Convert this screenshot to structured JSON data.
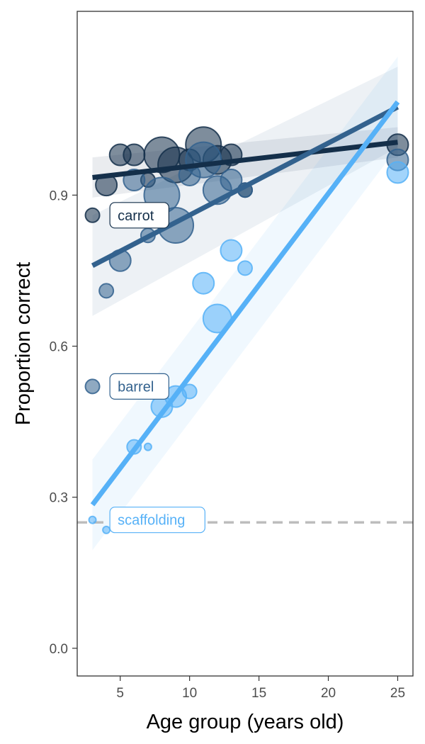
{
  "chart_data": {
    "type": "scatter",
    "title": "",
    "xlabel": "Age group (years old)",
    "ylabel": "Proportion correct",
    "xlim": [
      1.9,
      26.1
    ],
    "ylim": [
      -0.055,
      1.265
    ],
    "x_ticks": [
      5,
      10,
      15,
      20,
      25
    ],
    "y_ticks": [
      0.0,
      0.3,
      0.6,
      0.9
    ],
    "x_tick_labels": [
      "5",
      "10",
      "15",
      "20",
      "25"
    ],
    "y_tick_labels": [
      "0.0",
      "0.3",
      "0.6",
      "0.9"
    ],
    "grid": false,
    "legend": "none",
    "chance_line": {
      "y": 0.25,
      "color": "#bdbdbd",
      "style": "dashed"
    },
    "series": [
      {
        "name": "carrot",
        "color": "#142f4a",
        "points": [
          {
            "x": 3,
            "y": 0.86,
            "size": 2
          },
          {
            "x": 4,
            "y": 0.92,
            "size": 3
          },
          {
            "x": 5,
            "y": 0.98,
            "size": 3
          },
          {
            "x": 6,
            "y": 0.98,
            "size": 3
          },
          {
            "x": 7,
            "y": 0.93,
            "size": 2
          },
          {
            "x": 8,
            "y": 0.98,
            "size": 5
          },
          {
            "x": 9,
            "y": 0.96,
            "size": 5
          },
          {
            "x": 10,
            "y": 0.97,
            "size": 3
          },
          {
            "x": 11,
            "y": 1.0,
            "size": 5
          },
          {
            "x": 12,
            "y": 0.97,
            "size": 4
          },
          {
            "x": 13,
            "y": 0.98,
            "size": 3
          },
          {
            "x": 14,
            "y": 0.91,
            "size": 2
          },
          {
            "x": 25,
            "y": 1.0,
            "size": 3
          }
        ],
        "fit": {
          "x": [
            3,
            25
          ],
          "y": [
            0.935,
            1.005
          ],
          "band_lower": [
            0.895,
            0.975
          ],
          "band_upper": [
            0.975,
            1.035
          ]
        }
      },
      {
        "name": "barrel",
        "color": "#33628e",
        "points": [
          {
            "x": 3,
            "y": 0.52,
            "size": 2
          },
          {
            "x": 4,
            "y": 0.71,
            "size": 2
          },
          {
            "x": 5,
            "y": 0.77,
            "size": 3
          },
          {
            "x": 6,
            "y": 0.93,
            "size": 3
          },
          {
            "x": 7,
            "y": 0.82,
            "size": 2
          },
          {
            "x": 8,
            "y": 0.9,
            "size": 5
          },
          {
            "x": 9,
            "y": 0.84,
            "size": 5
          },
          {
            "x": 10,
            "y": 0.94,
            "size": 3
          },
          {
            "x": 11,
            "y": 0.97,
            "size": 5
          },
          {
            "x": 12,
            "y": 0.91,
            "size": 4
          },
          {
            "x": 13,
            "y": 0.93,
            "size": 3
          },
          {
            "x": 14,
            "y": 0.91,
            "size": 2
          },
          {
            "x": 25,
            "y": 0.97,
            "size": 3
          }
        ],
        "fit": {
          "x": [
            3,
            25
          ],
          "y": [
            0.76,
            1.075
          ],
          "band_lower": [
            0.66,
            0.995
          ],
          "band_upper": [
            0.86,
            1.155
          ]
        }
      },
      {
        "name": "scaffolding",
        "color": "#56b1f7",
        "points": [
          {
            "x": 3,
            "y": 0.255,
            "size": 1
          },
          {
            "x": 4,
            "y": 0.235,
            "size": 1
          },
          {
            "x": 6,
            "y": 0.4,
            "size": 2
          },
          {
            "x": 7,
            "y": 0.4,
            "size": 1
          },
          {
            "x": 8,
            "y": 0.48,
            "size": 3
          },
          {
            "x": 9,
            "y": 0.5,
            "size": 3
          },
          {
            "x": 10,
            "y": 0.51,
            "size": 2
          },
          {
            "x": 11,
            "y": 0.725,
            "size": 3
          },
          {
            "x": 12,
            "y": 0.655,
            "size": 4
          },
          {
            "x": 13,
            "y": 0.79,
            "size": 3
          },
          {
            "x": 14,
            "y": 0.755,
            "size": 2
          },
          {
            "x": 25,
            "y": 0.945,
            "size": 3
          }
        ],
        "fit": {
          "x": [
            3,
            25
          ],
          "y": [
            0.285,
            1.085
          ],
          "band_lower": [
            0.195,
            0.995
          ],
          "band_upper": [
            0.375,
            1.175
          ]
        }
      }
    ],
    "labels": [
      {
        "text": "carrot",
        "series": "carrot",
        "x": 4,
        "y": 0.86
      },
      {
        "text": "barrel",
        "series": "barrel",
        "x": 4,
        "y": 0.52
      },
      {
        "text": "scaffolding",
        "series": "scaffolding",
        "x": 4,
        "y": 0.255
      }
    ]
  }
}
